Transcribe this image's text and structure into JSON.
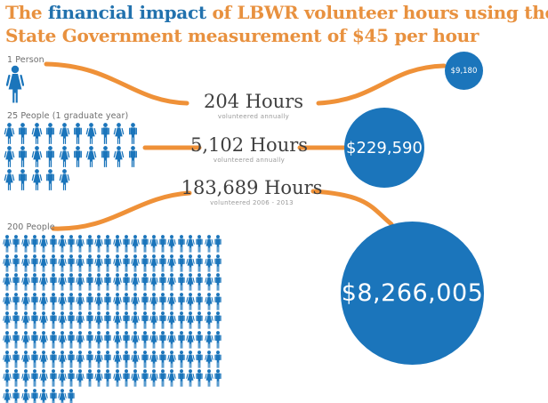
{
  "title": {
    "line1_pre": "The ",
    "line1_highlight": "financial impact",
    "line1_post": " of LBWR volunteer hours using the",
    "line2": "State Government measurement of $45 per hour"
  },
  "colors": {
    "blue": "#1b75bb",
    "orange": "#ef9138",
    "title_orange": "#e8913f",
    "title_blue": "#2272ae",
    "text_dark": "#3f3f3f",
    "text_gray": "#6e6e6e",
    "note_gray": "#9a9a9a",
    "circle_text": "#ffffff"
  },
  "sections": [
    {
      "group_label": "1 Person",
      "people_count": 1,
      "hours": "204 Hours",
      "hours_note": "volunteered annually",
      "amount": "$9,180"
    },
    {
      "group_label": "25 People (1 graduate year)",
      "people_count": 25,
      "hours": "5,102 Hours",
      "hours_note": "volunteered annually",
      "amount": "$229,590"
    },
    {
      "group_label": "200 People",
      "people_count": 200,
      "hours": "183,689 Hours",
      "hours_note": "volunteered 2006 - 2013",
      "amount": "$8,266,005"
    }
  ],
  "chart_data": {
    "type": "table",
    "variant": "pictograph with proportional value circles",
    "title": "The financial impact of LBWR volunteer hours using the State Government measurement of $45 per hour",
    "rate_per_hour_usd": 45,
    "categories": [
      "1 Person",
      "25 People (1 graduate year)",
      "200 People"
    ],
    "series": [
      {
        "name": "People",
        "values": [
          1,
          25,
          200
        ]
      },
      {
        "name": "Volunteer hours",
        "values": [
          204,
          5102,
          183689
        ]
      },
      {
        "name": "Financial impact (USD)",
        "values": [
          9180,
          229590,
          8266005
        ]
      }
    ],
    "notes": [
      "volunteered annually",
      "volunteered annually",
      "volunteered 2006 - 2013"
    ],
    "legend": "none",
    "icon_unit": "1 icon = 1 person"
  },
  "icons": {
    "female": "female-person-icon",
    "male": "male-person-icon"
  }
}
